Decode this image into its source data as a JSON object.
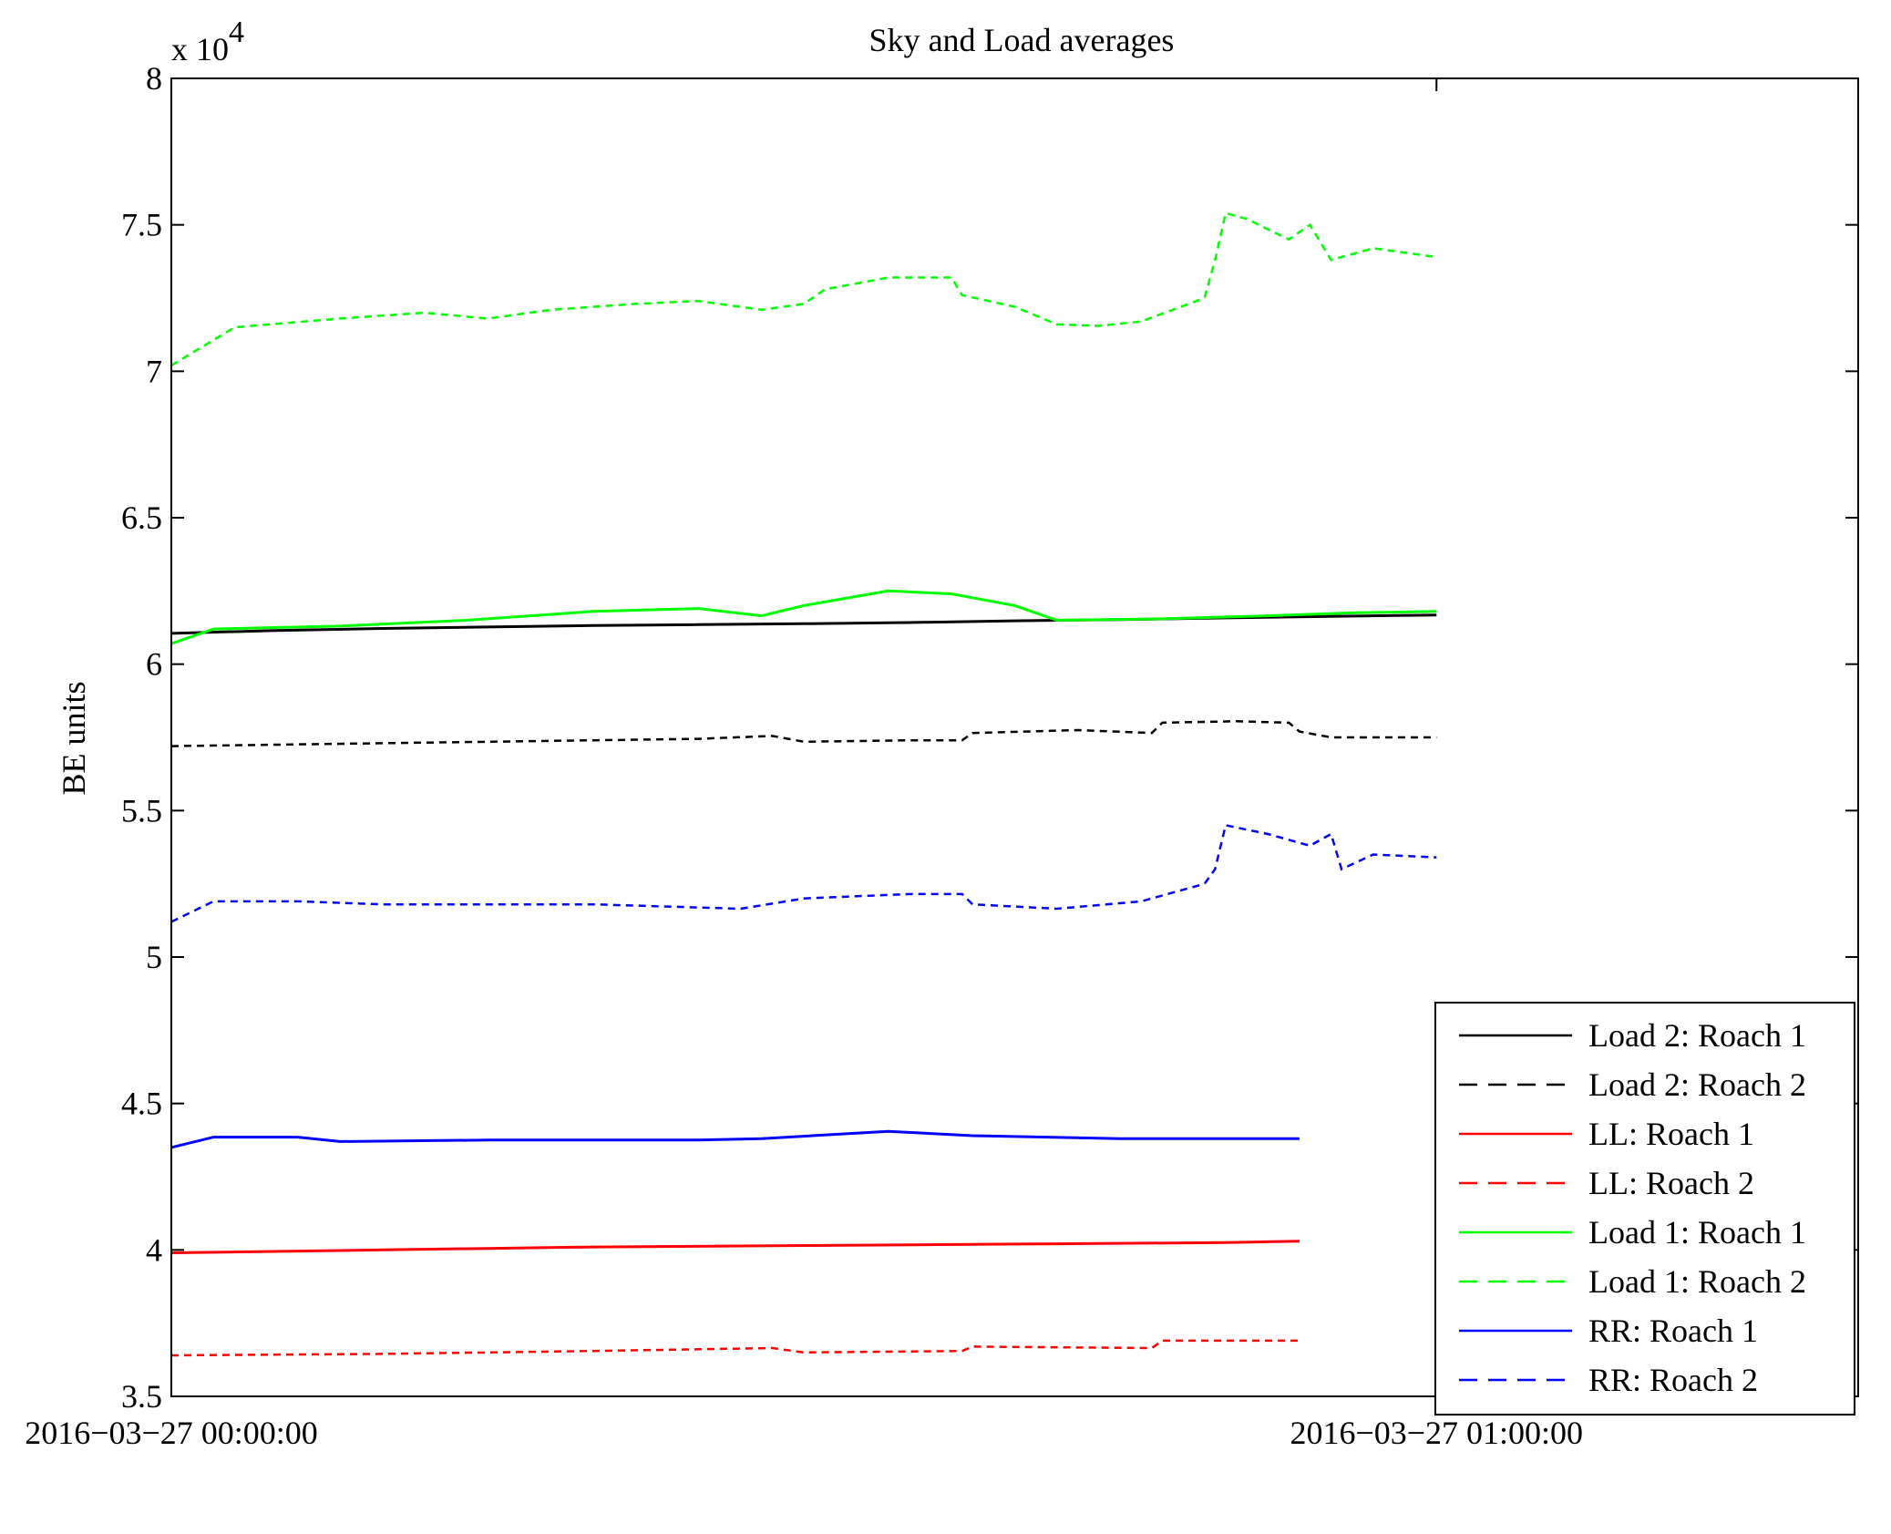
{
  "chart_data": {
    "type": "line",
    "title": "Sky and Load averages",
    "ylabel": "BE units",
    "xlabel": "",
    "y_multiplier": "x 10",
    "y_multiplier_exponent": "4",
    "ylim": [
      3.5,
      8
    ],
    "yticks": [
      "3.5",
      "4",
      "4.5",
      "5",
      "5.5",
      "6",
      "6.5",
      "7",
      "7.5",
      "8"
    ],
    "xlim": [
      "2016-03-27 00:00:00",
      "2016-03-27 01:20:00"
    ],
    "xticks": [
      {
        "t": "2016-03-27 00:00:00",
        "label": "2016−03−27 00:00:00"
      },
      {
        "t": "2016-03-27 01:00:00",
        "label": "2016−03−27 01:00:00"
      }
    ],
    "x_end": "2016-03-27 01:00:00",
    "grid": false,
    "legend_position": "bottom-right",
    "series": [
      {
        "name": "Load 2: Roach 1",
        "color": "#000000",
        "dash": "solid",
        "points": [
          [
            "2016-03-27 00:00:00",
            6.105
          ],
          [
            "2016-03-27 00:05:00",
            6.115
          ],
          [
            "2016-03-27 00:10:00",
            6.122
          ],
          [
            "2016-03-27 00:15:00",
            6.127
          ],
          [
            "2016-03-27 00:20:00",
            6.132
          ],
          [
            "2016-03-27 00:25:00",
            6.135
          ],
          [
            "2016-03-27 00:30:00",
            6.138
          ],
          [
            "2016-03-27 00:35:00",
            6.142
          ],
          [
            "2016-03-27 00:40:00",
            6.148
          ],
          [
            "2016-03-27 00:45:00",
            6.152
          ],
          [
            "2016-03-27 00:50:00",
            6.158
          ],
          [
            "2016-03-27 00:55:00",
            6.163
          ],
          [
            "2016-03-27 01:00:00",
            6.168
          ]
        ]
      },
      {
        "name": "Load 2: Roach 2",
        "color": "#000000",
        "dash": "dashed",
        "points": [
          [
            "2016-03-27 00:00:00",
            5.72
          ],
          [
            "2016-03-27 00:05:00",
            5.725
          ],
          [
            "2016-03-27 00:10:00",
            5.73
          ],
          [
            "2016-03-27 00:15:00",
            5.735
          ],
          [
            "2016-03-27 00:20:00",
            5.74
          ],
          [
            "2016-03-27 00:25:00",
            5.745
          ],
          [
            "2016-03-27 00:28:30",
            5.755
          ],
          [
            "2016-03-27 00:30:00",
            5.735
          ],
          [
            "2016-03-27 00:35:00",
            5.74
          ],
          [
            "2016-03-27 00:37:30",
            5.74
          ],
          [
            "2016-03-27 00:38:00",
            5.765
          ],
          [
            "2016-03-27 00:43:00",
            5.775
          ],
          [
            "2016-03-27 00:46:30",
            5.765
          ],
          [
            "2016-03-27 00:47:00",
            5.8
          ],
          [
            "2016-03-27 00:50:30",
            5.805
          ],
          [
            "2016-03-27 00:53:00",
            5.8
          ],
          [
            "2016-03-27 00:53:30",
            5.77
          ],
          [
            "2016-03-27 00:55:00",
            5.75
          ],
          [
            "2016-03-27 01:00:00",
            5.75
          ]
        ]
      },
      {
        "name": "LL: Roach 1",
        "color": "#ff0000",
        "dash": "solid",
        "points": [
          [
            "2016-03-27 00:00:00",
            3.99
          ],
          [
            "2016-03-27 00:10:00",
            4.0
          ],
          [
            "2016-03-27 00:20:00",
            4.01
          ],
          [
            "2016-03-27 00:30:00",
            4.015
          ],
          [
            "2016-03-27 00:40:00",
            4.02
          ],
          [
            "2016-03-27 00:50:00",
            4.025
          ],
          [
            "2016-03-27 00:53:30",
            4.03
          ]
        ]
      },
      {
        "name": "LL: Roach 2",
        "color": "#ff0000",
        "dash": "dashed",
        "points": [
          [
            "2016-03-27 00:00:00",
            3.64
          ],
          [
            "2016-03-27 00:10:00",
            3.645
          ],
          [
            "2016-03-27 00:20:00",
            3.655
          ],
          [
            "2016-03-27 00:28:30",
            3.665
          ],
          [
            "2016-03-27 00:30:00",
            3.65
          ],
          [
            "2016-03-27 00:37:30",
            3.655
          ],
          [
            "2016-03-27 00:38:00",
            3.67
          ],
          [
            "2016-03-27 00:46:30",
            3.665
          ],
          [
            "2016-03-27 00:47:00",
            3.69
          ],
          [
            "2016-03-27 00:53:30",
            3.69
          ]
        ]
      },
      {
        "name": "Load 1: Roach 1",
        "color": "#00ff00",
        "dash": "solid",
        "points": [
          [
            "2016-03-27 00:00:00",
            6.07
          ],
          [
            "2016-03-27 00:02:00",
            6.12
          ],
          [
            "2016-03-27 00:08:00",
            6.13
          ],
          [
            "2016-03-27 00:14:00",
            6.15
          ],
          [
            "2016-03-27 00:20:00",
            6.18
          ],
          [
            "2016-03-27 00:25:00",
            6.19
          ],
          [
            "2016-03-27 00:28:00",
            6.165
          ],
          [
            "2016-03-27 00:30:00",
            6.2
          ],
          [
            "2016-03-27 00:34:00",
            6.25
          ],
          [
            "2016-03-27 00:37:00",
            6.24
          ],
          [
            "2016-03-27 00:40:00",
            6.2
          ],
          [
            "2016-03-27 00:42:00",
            6.15
          ],
          [
            "2016-03-27 00:47:00",
            6.155
          ],
          [
            "2016-03-27 00:52:00",
            6.165
          ],
          [
            "2016-03-27 00:56:00",
            6.175
          ],
          [
            "2016-03-27 01:00:00",
            6.18
          ]
        ]
      },
      {
        "name": "Load 1: Roach 2",
        "color": "#00ff00",
        "dash": "dashed",
        "points": [
          [
            "2016-03-27 00:00:00",
            7.02
          ],
          [
            "2016-03-27 00:03:00",
            7.15
          ],
          [
            "2016-03-27 00:08:00",
            7.18
          ],
          [
            "2016-03-27 00:12:00",
            7.2
          ],
          [
            "2016-03-27 00:15:00",
            7.18
          ],
          [
            "2016-03-27 00:18:00",
            7.21
          ],
          [
            "2016-03-27 00:22:00",
            7.23
          ],
          [
            "2016-03-27 00:25:00",
            7.24
          ],
          [
            "2016-03-27 00:28:00",
            7.21
          ],
          [
            "2016-03-27 00:30:00",
            7.23
          ],
          [
            "2016-03-27 00:31:00",
            7.28
          ],
          [
            "2016-03-27 00:34:00",
            7.32
          ],
          [
            "2016-03-27 00:37:00",
            7.32
          ],
          [
            "2016-03-27 00:37:30",
            7.26
          ],
          [
            "2016-03-27 00:40:00",
            7.22
          ],
          [
            "2016-03-27 00:42:00",
            7.16
          ],
          [
            "2016-03-27 00:44:00",
            7.155
          ],
          [
            "2016-03-27 00:46:00",
            7.17
          ],
          [
            "2016-03-27 00:49:00",
            7.25
          ],
          [
            "2016-03-27 00:49:30",
            7.38
          ],
          [
            "2016-03-27 00:50:00",
            7.54
          ],
          [
            "2016-03-27 00:51:00",
            7.52
          ],
          [
            "2016-03-27 00:53:00",
            7.45
          ],
          [
            "2016-03-27 00:54:00",
            7.5
          ],
          [
            "2016-03-27 00:55:00",
            7.38
          ],
          [
            "2016-03-27 00:57:00",
            7.42
          ],
          [
            "2016-03-27 01:00:00",
            7.39
          ]
        ]
      },
      {
        "name": "RR: Roach 1",
        "color": "#0000ff",
        "dash": "solid",
        "points": [
          [
            "2016-03-27 00:00:00",
            4.35
          ],
          [
            "2016-03-27 00:02:00",
            4.385
          ],
          [
            "2016-03-27 00:06:00",
            4.385
          ],
          [
            "2016-03-27 00:08:00",
            4.37
          ],
          [
            "2016-03-27 00:15:00",
            4.375
          ],
          [
            "2016-03-27 00:25:00",
            4.375
          ],
          [
            "2016-03-27 00:28:00",
            4.38
          ],
          [
            "2016-03-27 00:34:00",
            4.405
          ],
          [
            "2016-03-27 00:38:00",
            4.39
          ],
          [
            "2016-03-27 00:45:00",
            4.38
          ],
          [
            "2016-03-27 00:53:30",
            4.38
          ]
        ]
      },
      {
        "name": "RR: Roach 2",
        "color": "#0000ff",
        "dash": "dashed",
        "points": [
          [
            "2016-03-27 00:00:00",
            5.12
          ],
          [
            "2016-03-27 00:02:00",
            5.19
          ],
          [
            "2016-03-27 00:06:00",
            5.19
          ],
          [
            "2016-03-27 00:10:00",
            5.18
          ],
          [
            "2016-03-27 00:20:00",
            5.18
          ],
          [
            "2016-03-27 00:27:00",
            5.165
          ],
          [
            "2016-03-27 00:30:00",
            5.2
          ],
          [
            "2016-03-27 00:35:00",
            5.215
          ],
          [
            "2016-03-27 00:37:30",
            5.215
          ],
          [
            "2016-03-27 00:38:00",
            5.18
          ],
          [
            "2016-03-27 00:42:00",
            5.165
          ],
          [
            "2016-03-27 00:46:00",
            5.19
          ],
          [
            "2016-03-27 00:49:00",
            5.25
          ],
          [
            "2016-03-27 00:49:30",
            5.3
          ],
          [
            "2016-03-27 00:50:00",
            5.45
          ],
          [
            "2016-03-27 00:52:00",
            5.42
          ],
          [
            "2016-03-27 00:54:00",
            5.38
          ],
          [
            "2016-03-27 00:55:00",
            5.42
          ],
          [
            "2016-03-27 00:55:30",
            5.3
          ],
          [
            "2016-03-27 00:57:00",
            5.35
          ],
          [
            "2016-03-27 01:00:00",
            5.34
          ]
        ]
      }
    ]
  }
}
